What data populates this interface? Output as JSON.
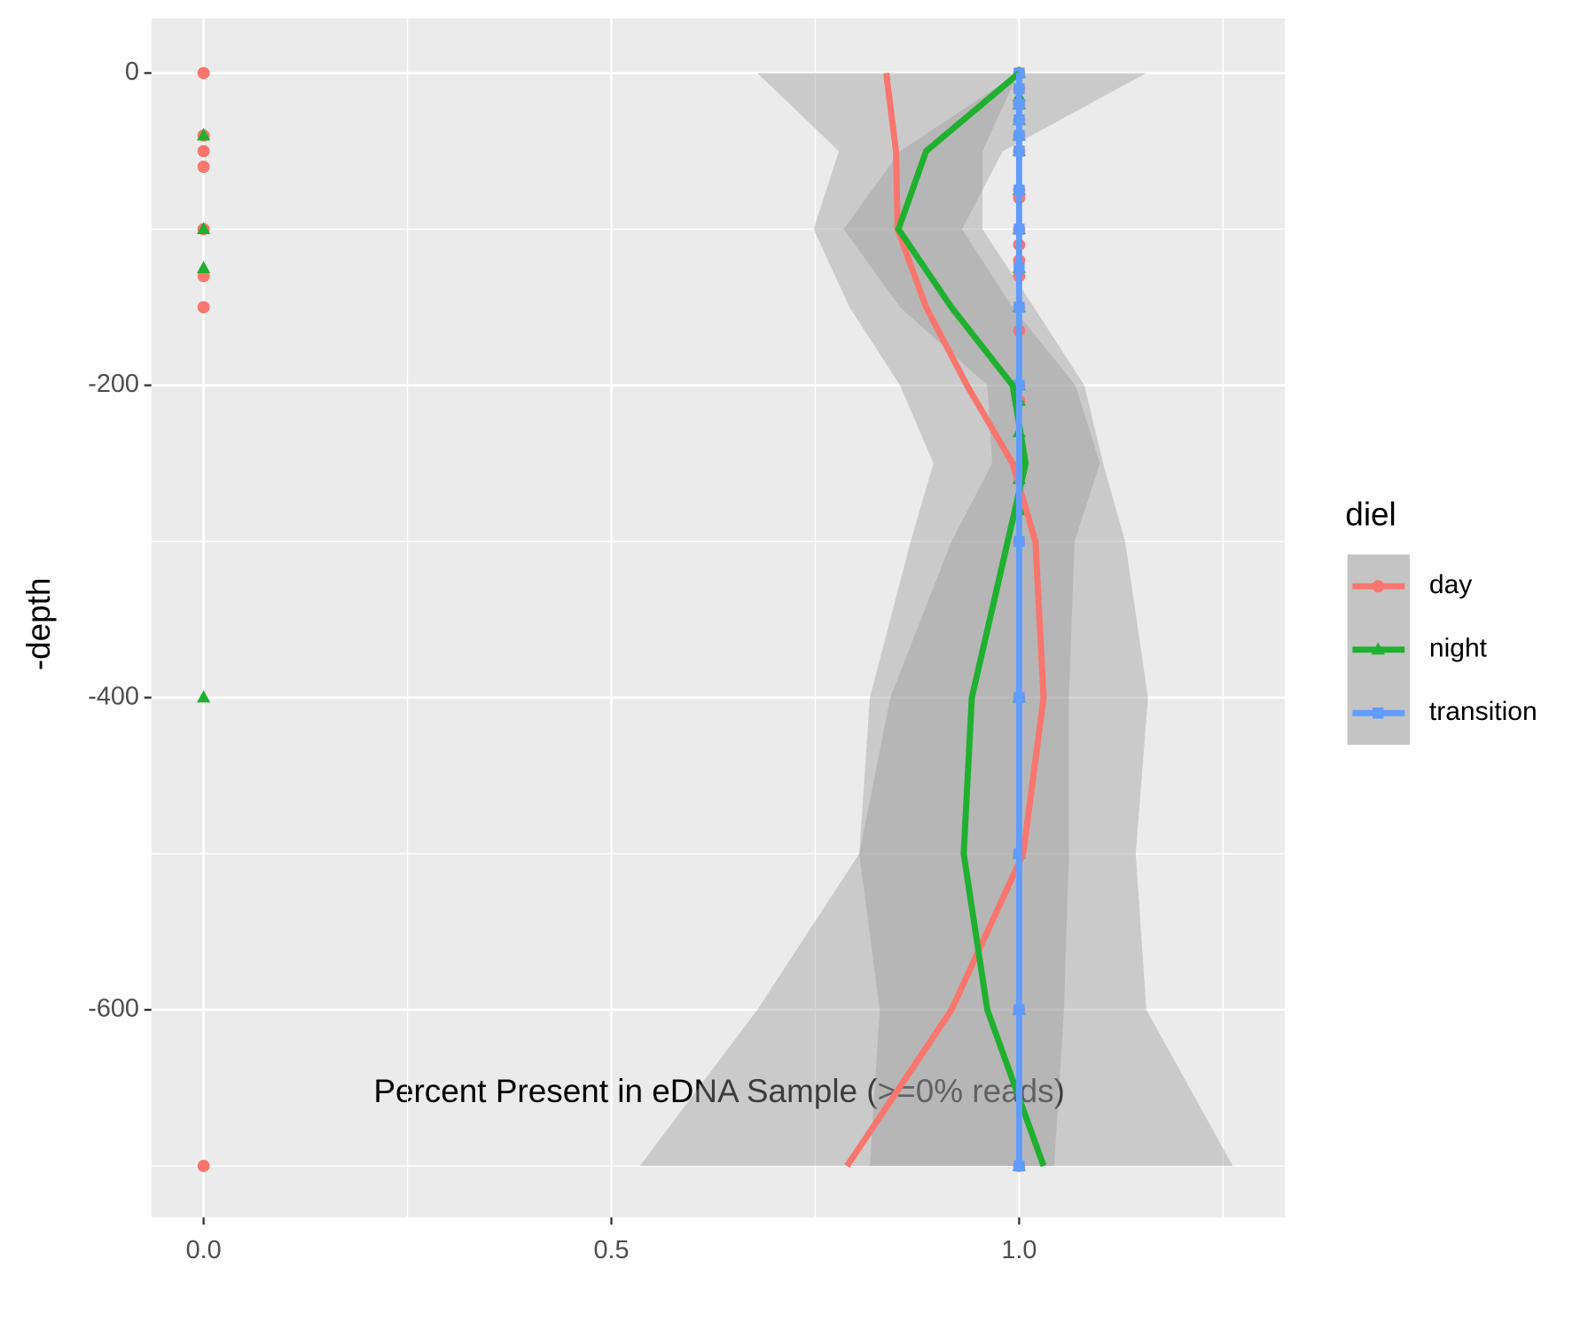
{
  "chart_data": {
    "type": "scatter",
    "x_label": "Percent Present in eDNA Sample (>=0% reads)",
    "y_label": "-depth",
    "xlim": [
      -0.064,
      1.326
    ],
    "ylim": [
      -733,
      35
    ],
    "xticks": [
      {
        "value": 0,
        "label": "0.0"
      },
      {
        "value": 0.5,
        "label": "0.5"
      },
      {
        "value": 1,
        "label": "1.0"
      }
    ],
    "x_minor_ticks": [
      0.25,
      0.75,
      1.25
    ],
    "yticks": [
      0,
      -200,
      -400,
      -600
    ],
    "y_minor_ticks": [
      -100,
      -300,
      -500,
      -700
    ],
    "grid": true,
    "legend_title": "diel",
    "legend_position": "right",
    "smooth_depth": [
      0,
      -50,
      -100,
      -150,
      -200,
      -250,
      -300,
      -400,
      -500,
      -600,
      -700
    ],
    "series": [
      {
        "name": "day",
        "color": "#f8766d",
        "shape": "circle",
        "x": [
          0,
          0,
          0,
          0,
          0,
          0,
          0,
          0,
          1,
          1,
          1,
          1,
          1,
          1,
          1,
          1,
          1,
          1,
          1,
          1,
          1,
          1,
          1,
          1,
          1,
          1,
          1,
          1,
          1
        ],
        "y": [
          0,
          -40,
          -50,
          -60,
          -100,
          -130,
          -150,
          -700,
          0,
          -10,
          -20,
          -30,
          -40,
          -50,
          -75,
          -80,
          -100,
          -110,
          -120,
          -130,
          -150,
          -165,
          -200,
          -210,
          -300,
          -400,
          -500,
          -600,
          -700
        ],
        "smooth": [
          0.837,
          0.849,
          0.851,
          0.886,
          0.936,
          0.992,
          1.02,
          1.03,
          1.005,
          0.917,
          0.789
        ],
        "band_lower": [
          0.679,
          0.779,
          0.748,
          0.792,
          0.854,
          0.895,
          0.867,
          0.817,
          0.804,
          0.679,
          0.535
        ],
        "band_upper": [
          0.999,
          0.955,
          0.955,
          1.018,
          1.08,
          1.103,
          1.13,
          1.158,
          1.143,
          1.156,
          1.262
        ]
      },
      {
        "name": "night",
        "color": "#1fb02f",
        "shape": "triangle",
        "x": [
          0,
          0,
          0,
          0,
          1,
          1,
          1,
          1,
          1,
          1,
          1,
          1,
          1,
          1,
          1,
          1,
          1,
          1,
          1,
          1,
          1,
          1,
          1,
          1
        ],
        "y": [
          -40,
          -100,
          -125,
          -400,
          0,
          -15,
          -20,
          -30,
          -40,
          -50,
          -75,
          -100,
          -125,
          -150,
          -200,
          -210,
          -230,
          -250,
          -260,
          -280,
          -400,
          -500,
          -600,
          -700
        ],
        "smooth": [
          1,
          0.886,
          0.852,
          0.917,
          0.992,
          1.008,
          0.986,
          0.942,
          0.932,
          0.961,
          1.03
        ],
        "band_lower": [
          0.999,
          0.854,
          0.785,
          0.854,
          0.961,
          0.967,
          0.917,
          0.842,
          0.804,
          0.829,
          0.817
        ],
        "band_upper": [
          1.156,
          0.98,
          0.93,
          0.992,
          1.069,
          1.099,
          1.068,
          1.061,
          1.061,
          1.055,
          1.043
        ]
      },
      {
        "name": "transition",
        "color": "#619cff",
        "shape": "square",
        "x": [
          1,
          1,
          1,
          1,
          1,
          1,
          1,
          1,
          1,
          1,
          1,
          1,
          1,
          1,
          1,
          1
        ],
        "y": [
          0,
          -10,
          -20,
          -30,
          -40,
          -50,
          -75,
          -100,
          -125,
          -150,
          -200,
          -300,
          -400,
          -500,
          -600,
          -700
        ],
        "smooth": [
          1,
          1,
          1,
          1,
          1,
          1,
          1,
          1,
          1,
          1,
          1
        ],
        "band_lower": [
          1,
          1,
          1,
          1,
          1,
          1,
          1,
          1,
          1,
          1,
          1
        ],
        "band_upper": [
          1,
          1,
          1,
          1,
          1,
          1,
          1,
          1,
          1,
          1,
          1
        ]
      }
    ]
  }
}
